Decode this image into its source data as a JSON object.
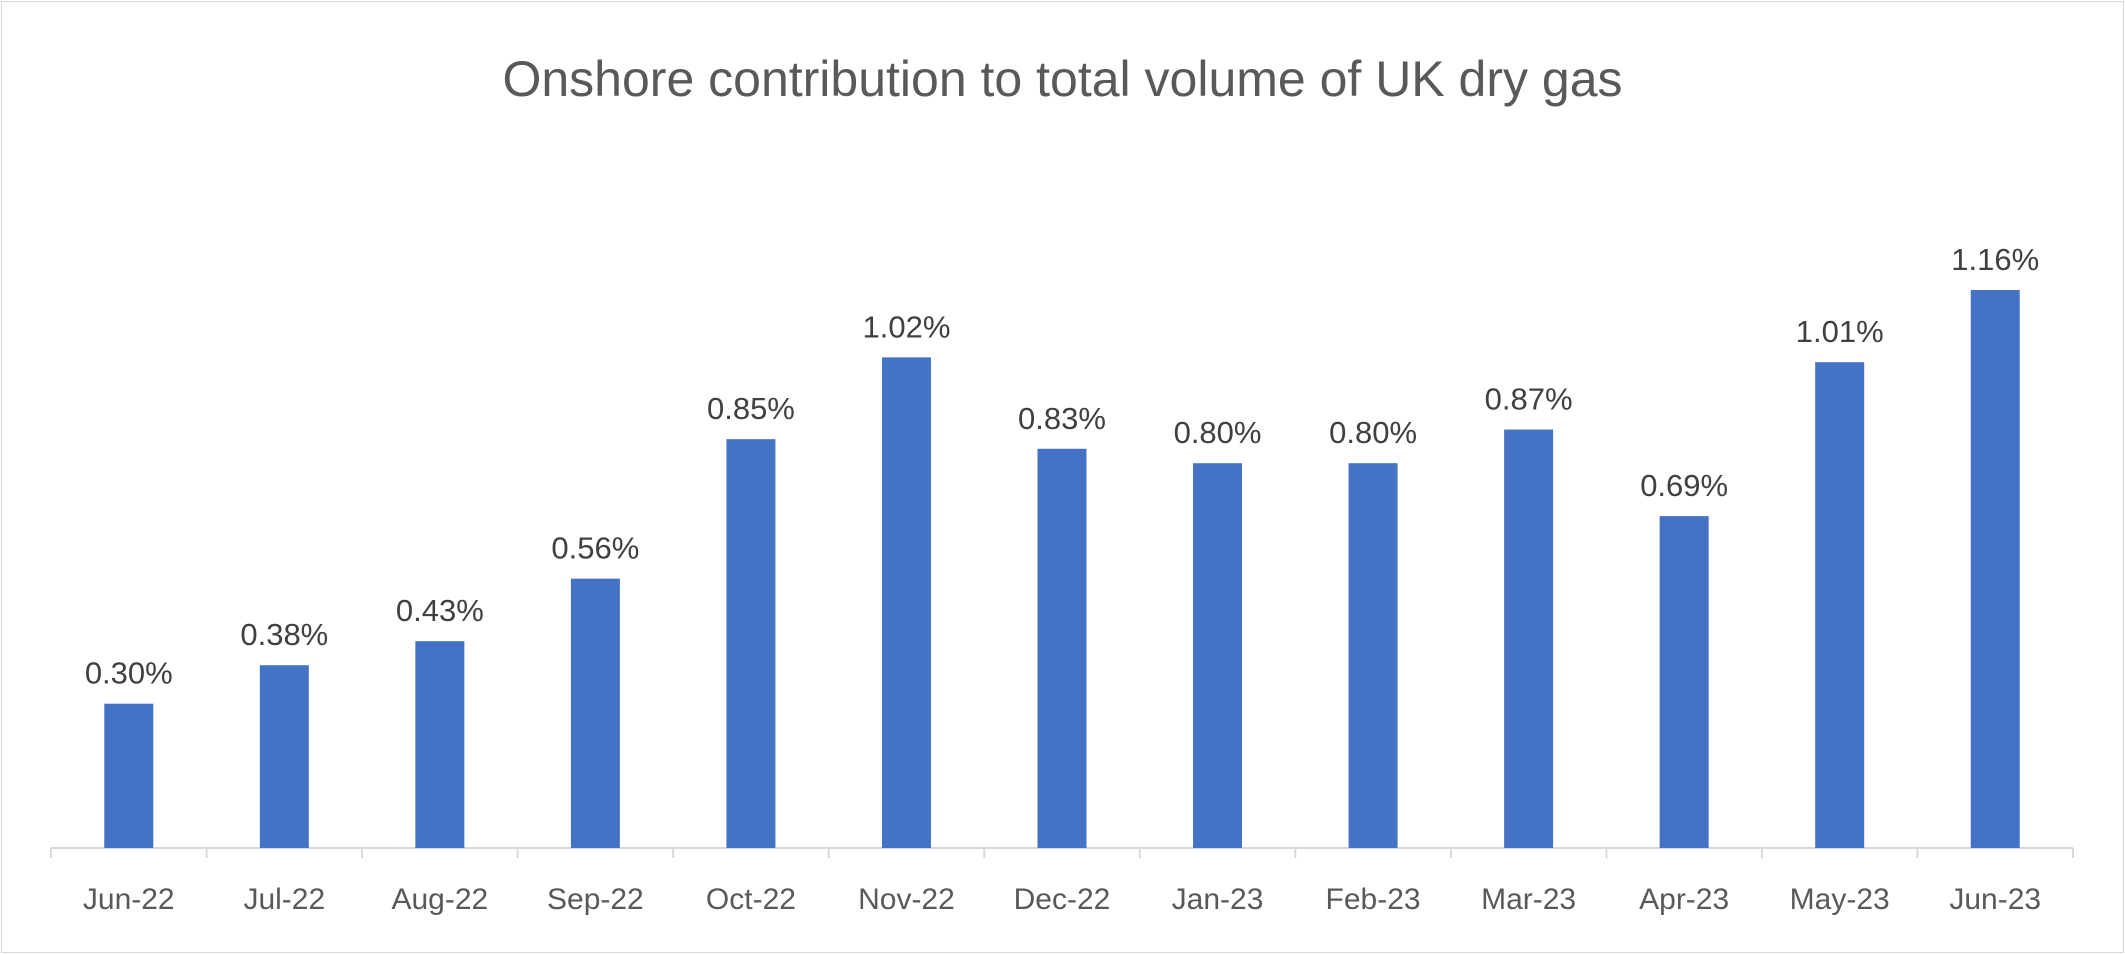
{
  "chart_data": {
    "type": "bar",
    "title": "Onshore contribution to total volume of UK dry gas",
    "categories": [
      "Jun-22",
      "Jul-22",
      "Aug-22",
      "Sep-22",
      "Oct-22",
      "Nov-22",
      "Dec-22",
      "Jan-23",
      "Feb-23",
      "Mar-23",
      "Apr-23",
      "May-23",
      "Jun-23"
    ],
    "values": [
      0.3,
      0.38,
      0.43,
      0.56,
      0.85,
      1.02,
      0.83,
      0.8,
      0.8,
      0.87,
      0.69,
      1.01,
      1.16
    ],
    "data_labels": [
      "0.30%",
      "0.38%",
      "0.43%",
      "0.56%",
      "0.85%",
      "1.02%",
      "0.83%",
      "0.80%",
      "0.80%",
      "0.87%",
      "0.69%",
      "1.01%",
      "1.16%"
    ],
    "unit": "%",
    "xlabel": "",
    "ylabel": "",
    "ylim": [
      0,
      1.2
    ],
    "y_axis_visible": false,
    "grid": false,
    "legend": "none",
    "bar_color": "#4472c4"
  }
}
